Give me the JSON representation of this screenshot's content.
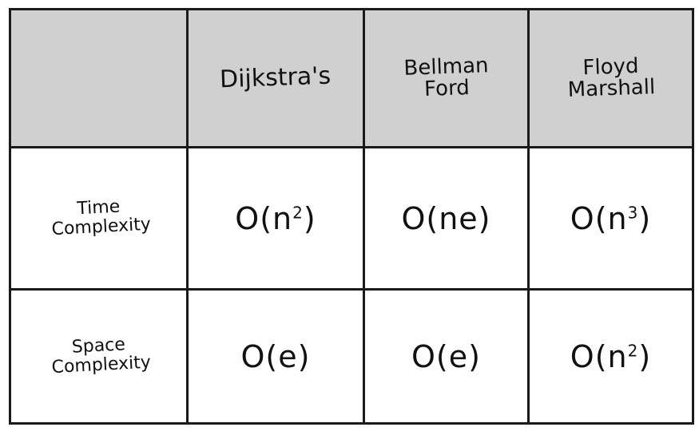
{
  "table": {
    "columns": [
      {
        "key": "blank",
        "label": ""
      },
      {
        "key": "dijkstra",
        "label": "Dijkstra's"
      },
      {
        "key": "bellman",
        "label": "Bellman Ford"
      },
      {
        "key": "floyd",
        "label": "Floyd Marshall"
      }
    ],
    "rows": [
      {
        "label": "Time Complexity",
        "cells": [
          {
            "base": "O(n",
            "sup": "2",
            "end": ")"
          },
          {
            "base": "O(ne)",
            "sup": "",
            "end": ""
          },
          {
            "base": "O(n",
            "sup": "3",
            "end": ")"
          }
        ]
      },
      {
        "label": "Space Complexity",
        "cells": [
          {
            "base": "O(e)",
            "sup": "",
            "end": ""
          },
          {
            "base": "O(e)",
            "sup": "",
            "end": ""
          },
          {
            "base": "O(n",
            "sup": "2",
            "end": ")"
          }
        ]
      }
    ]
  },
  "colors": {
    "header_bg": "#d0d0d0",
    "border": "#1a1a1a",
    "background": "#ffffff"
  }
}
